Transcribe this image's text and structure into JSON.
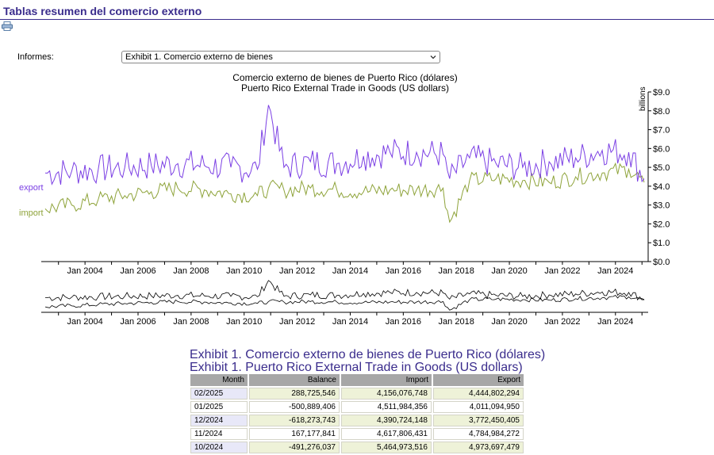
{
  "page": {
    "title": "Tablas resumen del comercio externo",
    "print_icon": "printer-icon"
  },
  "reports": {
    "label": "Informes:",
    "selected": "Exhibit 1. Comercio externo de bienes"
  },
  "chart": {
    "title_es": "Comercio externo de bienes de Puerto Rico (dólares)",
    "title_en": "Puerto Rico External Trade in Goods (US dollars)",
    "units_label": "billions",
    "series_labels": {
      "export": "export",
      "import": "import"
    },
    "y_ticks": [
      "$0.0",
      "$1.0",
      "$2.0",
      "$3.0",
      "$4.0",
      "$5.0",
      "$6.0",
      "$7.0",
      "$8.0",
      "$9.0"
    ],
    "x_ticks": [
      "Jan 2004",
      "Jan 2006",
      "Jan 2008",
      "Jan 2010",
      "Jan 2012",
      "Jan 2014",
      "Jan 2016",
      "Jan 2018",
      "Jan 2020",
      "Jan 2022",
      "Jan 2024"
    ],
    "colors": {
      "export": "#7b3fe4",
      "import": "#8ea33a",
      "overview": "#000000"
    }
  },
  "chart_data": {
    "type": "line",
    "title": "Comercio externo de bienes de Puerto Rico (dólares) / Puerto Rico External Trade in Goods (US dollars)",
    "xlabel": "",
    "ylabel": "billions",
    "ylim": [
      0,
      9
    ],
    "x": [
      "2002-07",
      "2003-07",
      "2004-07",
      "2005-07",
      "2006-07",
      "2007-07",
      "2008-07",
      "2009-07",
      "2010-07",
      "2010-12",
      "2011-07",
      "2012-07",
      "2013-07",
      "2014-07",
      "2015-07",
      "2016-07",
      "2017-07",
      "2017-10",
      "2018-07",
      "2019-07",
      "2020-07",
      "2021-07",
      "2022-07",
      "2023-07",
      "2024-07",
      "2025-02"
    ],
    "series": [
      {
        "name": "export",
        "values": [
          4.7,
          4.8,
          4.9,
          5.0,
          5.1,
          5.2,
          5.1,
          5.0,
          4.9,
          8.3,
          5.0,
          5.3,
          5.2,
          5.6,
          5.8,
          5.8,
          5.7,
          4.4,
          5.5,
          5.2,
          5.0,
          5.3,
          5.5,
          5.9,
          5.8,
          4.4
        ]
      },
      {
        "name": "import",
        "values": [
          2.8,
          3.0,
          3.3,
          3.5,
          3.7,
          3.9,
          3.8,
          3.6,
          3.5,
          3.9,
          3.8,
          3.9,
          3.8,
          3.7,
          3.8,
          3.8,
          3.9,
          2.1,
          4.3,
          4.4,
          4.3,
          4.2,
          4.5,
          4.7,
          4.9,
          4.2
        ]
      }
    ],
    "grid": false,
    "legend": "left"
  },
  "table": {
    "title_es": "Exhibit 1. Comercio externo de bienes de Puerto Rico (dólares)",
    "title_en": "Exhibit 1. Puerto Rico External Trade in Goods (US dollars)",
    "headers": {
      "month": "Month",
      "balance": "Balance",
      "import": "Import",
      "export": "Export"
    },
    "rows": [
      {
        "month": "02/2025",
        "balance": "288,725,546",
        "import": "4,156,076,748",
        "export": "4,444,802,294"
      },
      {
        "month": "01/2025",
        "balance": "-500,889,406",
        "import": "4,511,984,356",
        "export": "4,011,094,950"
      },
      {
        "month": "12/2024",
        "balance": "-618,273,743",
        "import": "4,390,724,148",
        "export": "3,772,450,405"
      },
      {
        "month": "11/2024",
        "balance": "167,177,841",
        "import": "4,617,806,431",
        "export": "4,784,984,272"
      },
      {
        "month": "10/2024",
        "balance": "-491,276,037",
        "import": "5,464,973,516",
        "export": "4,973,697,479"
      }
    ]
  }
}
